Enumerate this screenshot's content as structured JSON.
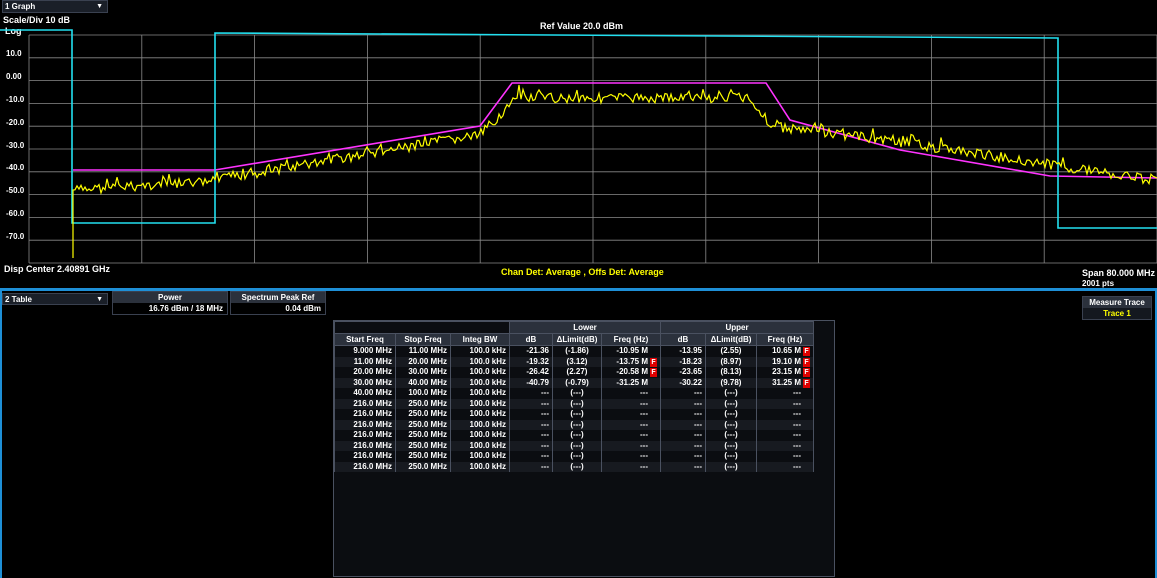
{
  "graph": {
    "window_title": "1 Graph",
    "scale_label": "Scale/Div 10 dB",
    "log_label": "Log",
    "ref_value": "Ref Value 20.0 dBm",
    "disp_center": "Disp Center 2.40891 GHz",
    "detectors": "Chan Det: Average , Offs Det: Average",
    "span": "Span 80.000 MHz",
    "points": "2001 pts",
    "y_ticks": [
      "10.0",
      "0.00",
      "-10.0",
      "-20.0",
      "-30.0",
      "-40.0",
      "-50.0",
      "-60.0",
      "-70.0"
    ],
    "colors": {
      "trace": "#ffff00",
      "limit": "#ff33ff",
      "mask": "#22e0f0",
      "grid": "#8a8a8a"
    }
  },
  "table_window": {
    "title": "2 Table",
    "power_header": "Power",
    "power_value": "16.76 dBm / 18 MHz",
    "peak_header": "Spectrum Peak Ref",
    "peak_value": "0.04 dBm",
    "measure_trace_header": "Measure Trace",
    "measure_trace_value": "Trace 1"
  },
  "results": {
    "group_lower": "Lower",
    "group_upper": "Upper",
    "columns": [
      "Start Freq",
      "Stop Freq",
      "Integ BW",
      "dB",
      "ΔLimit(dB)",
      "Freq (Hz)",
      "dB",
      "ΔLimit(dB)",
      "Freq (Hz)"
    ],
    "rows": [
      {
        "start": "9.000 MHz",
        "stop": "11.00 MHz",
        "bw": "100.0 kHz",
        "ldb": "-21.36",
        "llim": "(-1.86)",
        "lfreq": "-10.95 M",
        "lfail": false,
        "udb": "-13.95",
        "ulim": "(2.55)",
        "ufreq": "10.65 M",
        "ufail": true
      },
      {
        "start": "11.00 MHz",
        "stop": "20.00 MHz",
        "bw": "100.0 kHz",
        "ldb": "-19.32",
        "llim": "(3.12)",
        "lfreq": "-13.75 M",
        "lfail": true,
        "udb": "-18.23",
        "ulim": "(8.97)",
        "ufreq": "19.10 M",
        "ufail": true
      },
      {
        "start": "20.00 MHz",
        "stop": "30.00 MHz",
        "bw": "100.0 kHz",
        "ldb": "-26.42",
        "llim": "(2.27)",
        "lfreq": "-20.58 M",
        "lfail": true,
        "udb": "-23.65",
        "ulim": "(8.13)",
        "ufreq": "23.15 M",
        "ufail": true
      },
      {
        "start": "30.00 MHz",
        "stop": "40.00 MHz",
        "bw": "100.0 kHz",
        "ldb": "-40.79",
        "llim": "(-0.79)",
        "lfreq": "-31.25 M",
        "lfail": false,
        "udb": "-30.22",
        "ulim": "(9.78)",
        "ufreq": "31.25 M",
        "ufail": true
      },
      {
        "start": "40.00 MHz",
        "stop": "100.0 MHz",
        "bw": "100.0 kHz",
        "ldb": "---",
        "llim": "(---)",
        "lfreq": "---",
        "lfail": false,
        "udb": "---",
        "ulim": "(---)",
        "ufreq": "---",
        "ufail": false
      },
      {
        "start": "216.0 MHz",
        "stop": "250.0 MHz",
        "bw": "100.0 kHz",
        "ldb": "---",
        "llim": "(---)",
        "lfreq": "---",
        "lfail": false,
        "udb": "---",
        "ulim": "(---)",
        "ufreq": "---",
        "ufail": false
      },
      {
        "start": "216.0 MHz",
        "stop": "250.0 MHz",
        "bw": "100.0 kHz",
        "ldb": "---",
        "llim": "(---)",
        "lfreq": "---",
        "lfail": false,
        "udb": "---",
        "ulim": "(---)",
        "ufreq": "---",
        "ufail": false
      },
      {
        "start": "216.0 MHz",
        "stop": "250.0 MHz",
        "bw": "100.0 kHz",
        "ldb": "---",
        "llim": "(---)",
        "lfreq": "---",
        "lfail": false,
        "udb": "---",
        "ulim": "(---)",
        "ufreq": "---",
        "ufail": false
      },
      {
        "start": "216.0 MHz",
        "stop": "250.0 MHz",
        "bw": "100.0 kHz",
        "ldb": "---",
        "llim": "(---)",
        "lfreq": "---",
        "lfail": false,
        "udb": "---",
        "ulim": "(---)",
        "ufreq": "---",
        "ufail": false
      },
      {
        "start": "216.0 MHz",
        "stop": "250.0 MHz",
        "bw": "100.0 kHz",
        "ldb": "---",
        "llim": "(---)",
        "lfreq": "---",
        "lfail": false,
        "udb": "---",
        "ulim": "(---)",
        "ufreq": "---",
        "ufail": false
      },
      {
        "start": "216.0 MHz",
        "stop": "250.0 MHz",
        "bw": "100.0 kHz",
        "ldb": "---",
        "llim": "(---)",
        "lfreq": "---",
        "lfail": false,
        "udb": "---",
        "ulim": "(---)",
        "ufreq": "---",
        "ufail": false
      },
      {
        "start": "216.0 MHz",
        "stop": "250.0 MHz",
        "bw": "100.0 kHz",
        "ldb": "---",
        "llim": "(---)",
        "lfreq": "---",
        "lfail": false,
        "udb": "---",
        "ulim": "(---)",
        "ufreq": "---",
        "ufail": false
      }
    ],
    "fail_flag": "F"
  }
}
